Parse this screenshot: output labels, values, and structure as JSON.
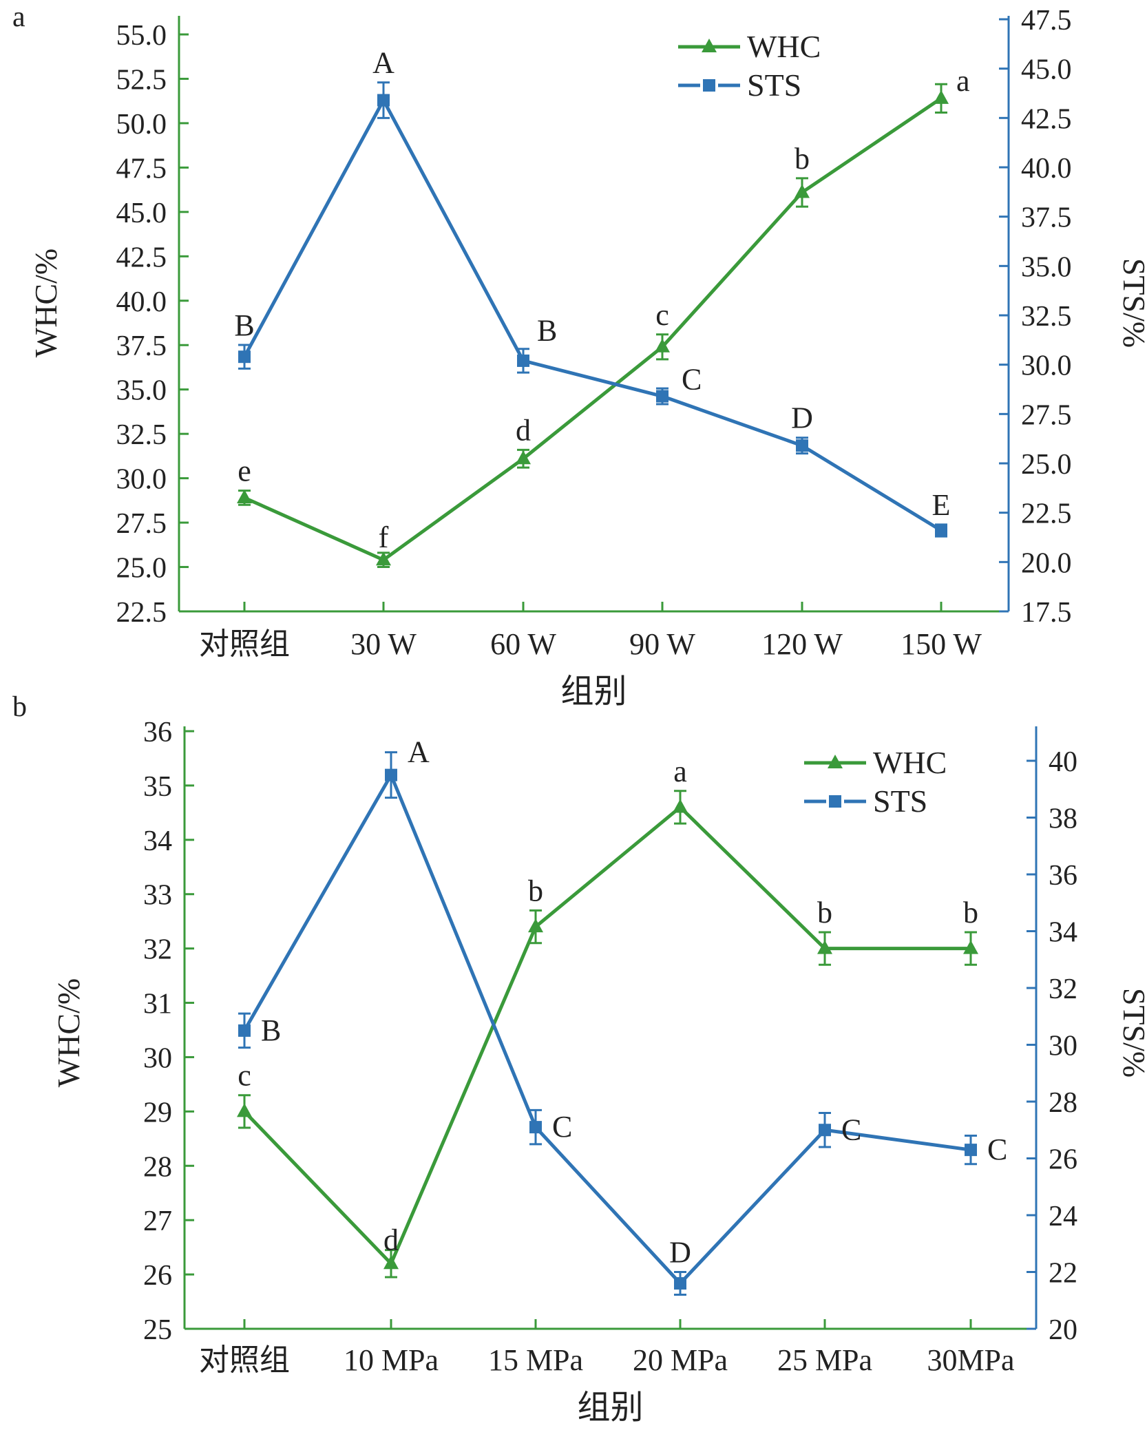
{
  "chart_data": [
    {
      "panel_label": "a",
      "type": "line",
      "xlabel": "组别",
      "ylabel_left": "WHC/%",
      "ylabel_right": "STS/%",
      "categories": [
        "对照组",
        "30 W",
        "60 W",
        "90 W",
        "120 W",
        "150 W"
      ],
      "ylim_left": [
        22.5,
        55.0
      ],
      "ylim_right": [
        17.5,
        47.5
      ],
      "yticks_left": [
        "22.5",
        "25.0",
        "27.5",
        "30.0",
        "32.5",
        "35.0",
        "37.5",
        "40.0",
        "42.5",
        "45.0",
        "47.5",
        "50.0",
        "52.5",
        "55.0"
      ],
      "yticks_right": [
        "17.5",
        "20.0",
        "22.5",
        "25.0",
        "27.5",
        "30.0",
        "32.5",
        "35.0",
        "37.5",
        "40.0",
        "42.5",
        "45.0",
        "47.5"
      ],
      "legend_position": "top-right",
      "grid": false,
      "series": [
        {
          "name": "WHC",
          "axis": "left",
          "marker": "triangle",
          "color": "#3a9a3a",
          "values": [
            28.9,
            25.4,
            31.1,
            37.4,
            46.1,
            51.4
          ],
          "errors": [
            0.4,
            0.4,
            0.5,
            0.7,
            0.8,
            0.8
          ],
          "labels": [
            "e",
            "f",
            "d",
            "c",
            "b",
            "a"
          ]
        },
        {
          "name": "STS",
          "axis": "right",
          "marker": "square",
          "color": "#2f74b5",
          "values": [
            30.4,
            43.4,
            30.2,
            28.4,
            25.9,
            21.6
          ],
          "errors": [
            0.6,
            0.9,
            0.6,
            0.4,
            0.4,
            0.3
          ],
          "labels": [
            "B",
            "A",
            "B",
            "C",
            "D",
            "E"
          ]
        }
      ]
    },
    {
      "panel_label": "b",
      "type": "line",
      "xlabel": "组别",
      "ylabel_left": "WHC/%",
      "ylabel_right": "STS/%",
      "categories": [
        "对照组",
        "10 MPa",
        "15 MPa",
        "20 MPa",
        "25 MPa",
        "30MPa"
      ],
      "ylim_left": [
        25,
        36
      ],
      "ylim_right": [
        20,
        41
      ],
      "yticks_left": [
        "25",
        "26",
        "27",
        "28",
        "29",
        "30",
        "31",
        "32",
        "33",
        "34",
        "35",
        "36"
      ],
      "yticks_right": [
        "20",
        "22",
        "24",
        "26",
        "28",
        "30",
        "32",
        "34",
        "36",
        "38",
        "40"
      ],
      "legend_position": "top-right",
      "grid": false,
      "series": [
        {
          "name": "WHC",
          "axis": "left",
          "marker": "triangle",
          "color": "#3a9a3a",
          "values": [
            29.0,
            26.2,
            32.4,
            34.6,
            32.0,
            32.0
          ],
          "errors": [
            0.3,
            0.25,
            0.3,
            0.3,
            0.3,
            0.3
          ],
          "labels": [
            "c",
            "d",
            "b",
            "a",
            "b",
            "b"
          ]
        },
        {
          "name": "STS",
          "axis": "right",
          "marker": "square",
          "color": "#2f74b5",
          "values": [
            30.5,
            39.5,
            27.1,
            21.6,
            27.0,
            26.3
          ],
          "errors": [
            0.6,
            0.8,
            0.6,
            0.4,
            0.6,
            0.5
          ],
          "labels": [
            "B",
            "A",
            "C",
            "D",
            "C",
            "C"
          ]
        }
      ]
    }
  ]
}
